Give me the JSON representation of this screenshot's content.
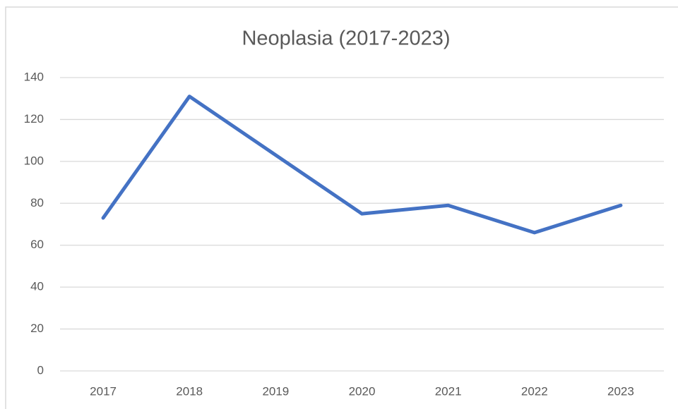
{
  "chart_data": {
    "type": "line",
    "title": "Neoplasia (2017-2023)",
    "categories": [
      "2017",
      "2018",
      "2019",
      "2020",
      "2021",
      "2022",
      "2023"
    ],
    "series": [
      {
        "name": "Neoplasia",
        "color": "#4472c4",
        "values": [
          73,
          131,
          103,
          75,
          79,
          66,
          79
        ]
      }
    ],
    "ylim": [
      0,
      140
    ],
    "yticks": [
      0,
      20,
      40,
      60,
      80,
      100,
      120,
      140
    ],
    "grid": true
  }
}
